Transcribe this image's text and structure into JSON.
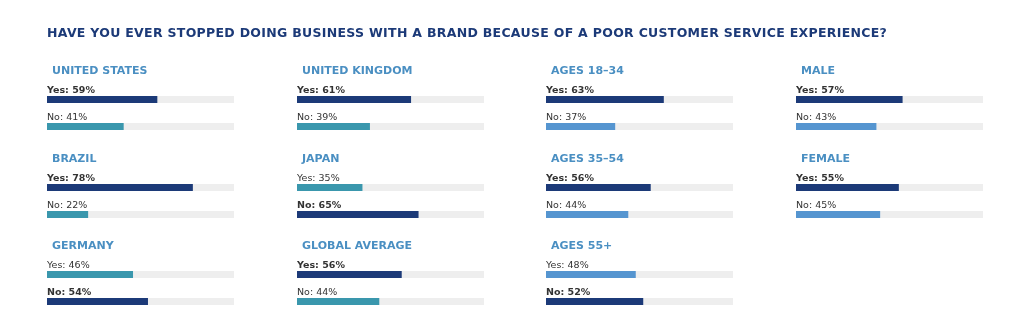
{
  "chart_data": [
    {
      "type": "bar",
      "orientation": "horizontal",
      "title": "UNITED STATES",
      "annotations": [
        "HAVE YOU EVER STOPPED DOING BUSINESS WITH A BRAND BECAUSE OF A POOR CUSTOMER SERVICE EXPERIENCE?"
      ],
      "categories": [
        null,
        null
      ],
      "values": [
        59,
        41
      ],
      "value_labels": [
        "Yes: 59%",
        "No: 41%"
      ],
      "colors": [
        "#1c3a78",
        "#3a97ad"
      ],
      "tick_labels": false
    },
    {
      "type": "bar",
      "orientation": "horizontal",
      "title": "UNITED KINGDOM",
      "categories": [
        null,
        null
      ],
      "values": [
        61,
        39
      ],
      "value_labels": [
        "Yes: 61%",
        "No: 39%"
      ],
      "colors": [
        "#1c3a78",
        "#3a97ad"
      ],
      "tick_labels": false
    },
    {
      "type": "bar",
      "orientation": "horizontal",
      "title": "AGES 18–34",
      "categories": [
        null,
        null
      ],
      "values": [
        63,
        37
      ],
      "value_labels": [
        "Yes: 63%",
        "No: 37%"
      ],
      "colors": [
        "#1c3a78",
        "#5595d0"
      ],
      "tick_labels": false
    },
    {
      "type": "bar",
      "orientation": "horizontal",
      "title": "MALE",
      "categories": [
        null,
        null
      ],
      "values": [
        57,
        43
      ],
      "value_labels": [
        "Yes: 57%",
        "No: 43%"
      ],
      "colors": [
        "#1c3a78",
        "#5595d0"
      ],
      "tick_labels": false
    },
    {
      "type": "bar",
      "orientation": "horizontal",
      "title": "BRAZIL",
      "categories": [
        null,
        null
      ],
      "values": [
        78,
        22
      ],
      "value_labels": [
        "Yes: 78%",
        "No: 22%"
      ],
      "colors": [
        "#1c3a78",
        "#3a97ad"
      ],
      "tick_labels": false
    },
    {
      "type": "bar",
      "orientation": "horizontal",
      "title": "JAPAN",
      "categories": [
        null,
        null
      ],
      "values": [
        35,
        65
      ],
      "value_labels": [
        "Yes: 35%",
        "No: 65%"
      ],
      "colors": [
        "#3a97ad",
        "#1c3a78"
      ],
      "tick_labels": false
    },
    {
      "type": "bar",
      "orientation": "horizontal",
      "title": "AGES 35–54",
      "categories": [
        null,
        null
      ],
      "values": [
        56,
        44
      ],
      "value_labels": [
        "Yes: 56%",
        "No: 44%"
      ],
      "colors": [
        "#1c3a78",
        "#5595d0"
      ],
      "tick_labels": false
    },
    {
      "type": "bar",
      "orientation": "horizontal",
      "title": "FEMALE",
      "categories": [
        null,
        null
      ],
      "values": [
        55,
        45
      ],
      "value_labels": [
        "Yes: 55%",
        "No: 45%"
      ],
      "colors": [
        "#1c3a78",
        "#5595d0"
      ],
      "tick_labels": false
    },
    {
      "type": "bar",
      "orientation": "horizontal",
      "title": "GERMANY",
      "categories": [
        null,
        null
      ],
      "values": [
        46,
        54
      ],
      "value_labels": [
        "Yes: 46%",
        "No: 54%"
      ],
      "colors": [
        "#3a97ad",
        "#1c3a78"
      ],
      "tick_labels": false
    },
    {
      "type": "bar",
      "orientation": "horizontal",
      "title": "GLOBAL AVERAGE",
      "categories": [
        null,
        null
      ],
      "values": [
        56,
        44
      ],
      "value_labels": [
        "Yes: 56%",
        "No: 44%"
      ],
      "colors": [
        "#1c3a78",
        "#3a97ad"
      ],
      "tick_labels": false
    },
    {
      "type": "bar",
      "orientation": "horizontal",
      "title": "AGES 55+",
      "categories": [
        null,
        null
      ],
      "values": [
        48,
        52
      ],
      "value_labels": [
        "Yes: 48%",
        "No: 52%"
      ],
      "colors": [
        "#5595d0",
        "#1c3a78"
      ],
      "tick_labels": false
    }
  ]
}
